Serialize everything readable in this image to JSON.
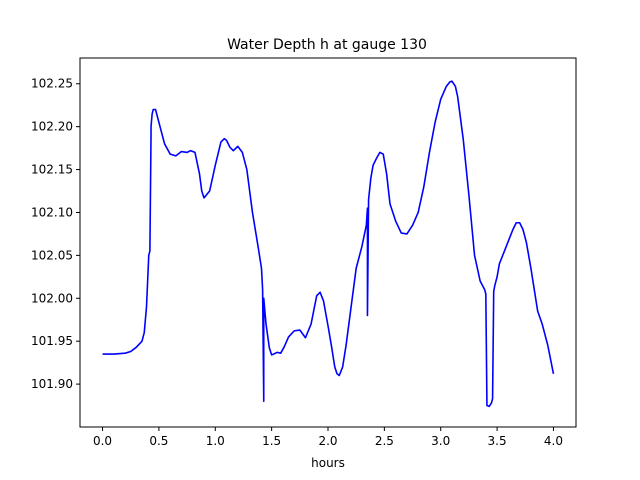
{
  "chart_data": {
    "type": "line",
    "title": "Water Depth h at gauge 130",
    "xlabel": "hours",
    "ylabel": "",
    "xlim": [
      -0.2,
      4.2
    ],
    "ylim": [
      101.85,
      102.28
    ],
    "xticks": [
      0.0,
      0.5,
      1.0,
      1.5,
      2.0,
      2.5,
      3.0,
      3.5,
      4.0
    ],
    "xtick_labels": [
      "0.0",
      "0.5",
      "1.0",
      "1.5",
      "2.0",
      "2.5",
      "3.0",
      "3.5",
      "4.0"
    ],
    "yticks": [
      101.9,
      101.95,
      102.0,
      102.05,
      102.1,
      102.15,
      102.2,
      102.25
    ],
    "ytick_labels": [
      "101.90",
      "101.95",
      "102.00",
      "102.05",
      "102.10",
      "102.15",
      "102.20",
      "102.25"
    ],
    "grid": false,
    "legend": "none",
    "series": [
      {
        "color": "#0000ff",
        "x": [
          0.0,
          0.1,
          0.2,
          0.25,
          0.3,
          0.35,
          0.37,
          0.39,
          0.4,
          0.41,
          0.42,
          0.43,
          0.43,
          0.44,
          0.45,
          0.47,
          0.5,
          0.55,
          0.6,
          0.65,
          0.7,
          0.75,
          0.78,
          0.82,
          0.86,
          0.88,
          0.9,
          0.95,
          1.0,
          1.05,
          1.08,
          1.1,
          1.13,
          1.16,
          1.2,
          1.24,
          1.28,
          1.33,
          1.38,
          1.41,
          1.42,
          1.43,
          1.43,
          1.45,
          1.48,
          1.5,
          1.55,
          1.58,
          1.61,
          1.65,
          1.7,
          1.75,
          1.8,
          1.85,
          1.88,
          1.9,
          1.93,
          1.96,
          2.0,
          2.03,
          2.06,
          2.08,
          2.1,
          2.13,
          2.16,
          2.2,
          2.25,
          2.3,
          2.34,
          2.35,
          2.35,
          2.36,
          2.38,
          2.4,
          2.43,
          2.46,
          2.49,
          2.52,
          2.55,
          2.6,
          2.65,
          2.7,
          2.75,
          2.8,
          2.85,
          2.9,
          2.95,
          3.0,
          3.05,
          3.08,
          3.1,
          3.13,
          3.15,
          3.2,
          3.25,
          3.3,
          3.35,
          3.37,
          3.39,
          3.4,
          3.41,
          3.43,
          3.45,
          3.46,
          3.47,
          3.48,
          3.5,
          3.52,
          3.55,
          3.58,
          3.61,
          3.64,
          3.67,
          3.7,
          3.73,
          3.76,
          3.8,
          3.83,
          3.86,
          3.9,
          3.95,
          4.0
        ],
        "y": [
          101.935,
          101.935,
          101.936,
          101.938,
          101.943,
          101.95,
          101.96,
          101.99,
          102.02,
          102.05,
          102.055,
          102.19,
          102.2,
          102.215,
          102.22,
          102.22,
          102.205,
          102.18,
          102.168,
          102.166,
          102.171,
          102.17,
          102.172,
          102.17,
          102.145,
          102.125,
          102.117,
          102.125,
          102.155,
          102.182,
          102.186,
          102.184,
          102.176,
          102.172,
          102.177,
          102.17,
          102.15,
          102.1,
          102.06,
          102.035,
          102.01,
          101.88,
          102.0,
          101.97,
          101.942,
          101.934,
          101.937,
          101.936,
          101.943,
          101.955,
          101.962,
          101.963,
          101.954,
          101.97,
          101.99,
          102.003,
          102.007,
          101.997,
          101.968,
          101.945,
          101.92,
          101.912,
          101.91,
          101.92,
          101.945,
          101.985,
          102.035,
          102.06,
          102.085,
          102.105,
          101.98,
          102.115,
          102.14,
          102.155,
          102.163,
          102.17,
          102.168,
          102.145,
          102.11,
          102.09,
          102.076,
          102.075,
          102.085,
          102.1,
          102.13,
          102.17,
          102.205,
          102.232,
          102.247,
          102.252,
          102.253,
          102.247,
          102.235,
          102.185,
          102.12,
          102.05,
          102.02,
          102.015,
          102.01,
          102.005,
          101.875,
          101.874,
          101.878,
          101.883,
          102.008,
          102.015,
          102.025,
          102.04,
          102.05,
          102.06,
          102.07,
          102.08,
          102.088,
          102.088,
          102.08,
          102.065,
          102.035,
          102.01,
          101.985,
          101.97,
          101.945,
          101.912
        ]
      }
    ]
  }
}
